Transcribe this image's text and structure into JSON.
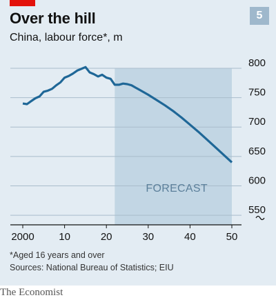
{
  "header": {
    "title": "Over the hill",
    "subtitle": "China, labour force*, m",
    "badge": "5"
  },
  "footer": {
    "footnote": "*Aged 16 years and over",
    "source": "Sources: National Bureau of Statistics; EIU",
    "brand": "The Economist"
  },
  "colors": {
    "background": "#e3ecf3",
    "forecast_shade": "#c2d6e4",
    "line": "#1f6797",
    "accent": "#e3120b"
  },
  "chart_data": {
    "type": "line",
    "title": "Over the hill",
    "subtitle": "China, labour force*, m",
    "xlabel": "",
    "ylabel": "",
    "xlim": [
      1998,
      2052
    ],
    "ylim": [
      522,
      800
    ],
    "x_ticks": [
      2000,
      2010,
      2020,
      2030,
      2040,
      2050
    ],
    "x_tick_labels": [
      "2000",
      "10",
      "20",
      "30",
      "40",
      "50"
    ],
    "y_ticks": [
      800,
      750,
      700,
      650,
      600,
      550
    ],
    "y_tick_labels": [
      "800",
      "750",
      "700",
      "650",
      "600",
      "550"
    ],
    "y_axis_break": true,
    "grid": true,
    "annotations": [
      {
        "text": "FORECAST",
        "x_start": 2022,
        "x_end": 2050
      }
    ],
    "series": [
      {
        "x": [
          2000,
          2001,
          2002,
          2003,
          2004,
          2005,
          2006,
          2007,
          2008,
          2009,
          2010,
          2011,
          2012,
          2013,
          2014,
          2015,
          2016,
          2017,
          2018,
          2019,
          2020,
          2021,
          2022,
          2023,
          2024,
          2025,
          2026,
          2027,
          2028,
          2030,
          2032,
          2034,
          2036,
          2038,
          2040,
          2042,
          2044,
          2046,
          2048,
          2050
        ],
        "values": [
          740,
          739,
          744,
          749,
          752,
          760,
          762,
          765,
          771,
          776,
          784,
          787,
          791,
          796,
          799,
          802,
          793,
          790,
          786,
          789,
          784,
          782,
          772,
          772,
          774,
          773,
          771,
          767,
          763,
          755,
          746,
          737,
          727,
          716,
          704,
          692,
          679,
          666,
          653,
          640
        ]
      }
    ]
  }
}
